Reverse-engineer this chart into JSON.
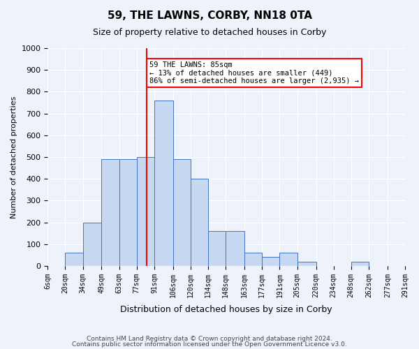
{
  "title1": "59, THE LAWNS, CORBY, NN18 0TA",
  "title2": "Size of property relative to detached houses in Corby",
  "xlabel": "Distribution of detached houses by size in Corby",
  "ylabel": "Number of detached properties",
  "bin_labels": [
    "6sqm",
    "20sqm",
    "34sqm",
    "49sqm",
    "63sqm",
    "77sqm",
    "91sqm",
    "106sqm",
    "120sqm",
    "134sqm",
    "148sqm",
    "163sqm",
    "177sqm",
    "191sqm",
    "205sqm",
    "220sqm",
    "234sqm",
    "248sqm",
    "262sqm",
    "277sqm",
    "291sqm"
  ],
  "bin_edges": [
    6,
    20,
    34,
    49,
    63,
    77,
    91,
    106,
    120,
    134,
    148,
    163,
    177,
    191,
    205,
    220,
    234,
    248,
    262,
    277,
    291
  ],
  "bar_heights": [
    0,
    60,
    200,
    490,
    490,
    500,
    760,
    490,
    400,
    160,
    160,
    60,
    40,
    60,
    20,
    0,
    0,
    20,
    0,
    0
  ],
  "bar_color": "#c6d9f0",
  "bar_edge_color": "#4472c4",
  "red_line_x": 85,
  "annotation_text": "59 THE LAWNS: 85sqm\n← 13% of detached houses are smaller (449)\n86% of semi-detached houses are larger (2,935) →",
  "annotation_box_color": "white",
  "annotation_box_edge": "red",
  "ylim": [
    0,
    1000
  ],
  "yticks": [
    0,
    100,
    200,
    300,
    400,
    500,
    600,
    700,
    800,
    900,
    1000
  ],
  "footer1": "Contains HM Land Registry data © Crown copyright and database right 2024.",
  "footer2": "Contains public sector information licensed under the Open Government Licence v3.0.",
  "bg_color": "#eef3fb",
  "grid_color": "white"
}
